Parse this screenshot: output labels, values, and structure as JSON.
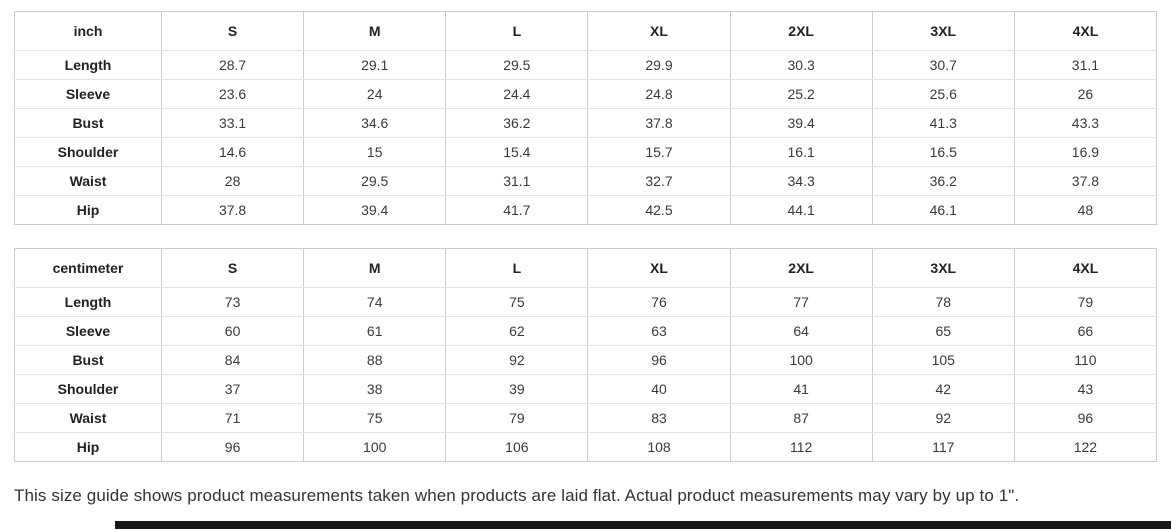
{
  "tables": [
    {
      "unit_label": "inch",
      "sizes": [
        "S",
        "M",
        "L",
        "XL",
        "2XL",
        "3XL",
        "4XL"
      ],
      "rows": [
        {
          "label": "Length",
          "values": [
            "28.7",
            "29.1",
            "29.5",
            "29.9",
            "30.3",
            "30.7",
            "31.1"
          ]
        },
        {
          "label": "Sleeve",
          "values": [
            "23.6",
            "24",
            "24.4",
            "24.8",
            "25.2",
            "25.6",
            "26"
          ]
        },
        {
          "label": "Bust",
          "values": [
            "33.1",
            "34.6",
            "36.2",
            "37.8",
            "39.4",
            "41.3",
            "43.3"
          ]
        },
        {
          "label": "Shoulder",
          "values": [
            "14.6",
            "15",
            "15.4",
            "15.7",
            "16.1",
            "16.5",
            "16.9"
          ]
        },
        {
          "label": "Waist",
          "values": [
            "28",
            "29.5",
            "31.1",
            "32.7",
            "34.3",
            "36.2",
            "37.8"
          ]
        },
        {
          "label": "Hip",
          "values": [
            "37.8",
            "39.4",
            "41.7",
            "42.5",
            "44.1",
            "46.1",
            "48"
          ]
        }
      ]
    },
    {
      "unit_label": "centimeter",
      "sizes": [
        "S",
        "M",
        "L",
        "XL",
        "2XL",
        "3XL",
        "4XL"
      ],
      "rows": [
        {
          "label": "Length",
          "values": [
            "73",
            "74",
            "75",
            "76",
            "77",
            "78",
            "79"
          ]
        },
        {
          "label": "Sleeve",
          "values": [
            "60",
            "61",
            "62",
            "63",
            "64",
            "65",
            "66"
          ]
        },
        {
          "label": "Bust",
          "values": [
            "84",
            "88",
            "92",
            "96",
            "100",
            "105",
            "110"
          ]
        },
        {
          "label": "Shoulder",
          "values": [
            "37",
            "38",
            "39",
            "40",
            "41",
            "42",
            "43"
          ]
        },
        {
          "label": "Waist",
          "values": [
            "71",
            "75",
            "79",
            "83",
            "87",
            "92",
            "96"
          ]
        },
        {
          "label": "Hip",
          "values": [
            "96",
            "100",
            "106",
            "108",
            "112",
            "117",
            "122"
          ]
        }
      ]
    }
  ],
  "note": "This size guide shows product measurements taken when products are laid flat. Actual product measurements may vary by up to 1\".",
  "colors": {
    "border_vertical": "#cbcbcb",
    "border_horizontal": "#e4e4e4",
    "header_text": "#222222",
    "value_text": "#3a3a3a",
    "note_text": "#333333",
    "bottom_bar": "#181818"
  }
}
